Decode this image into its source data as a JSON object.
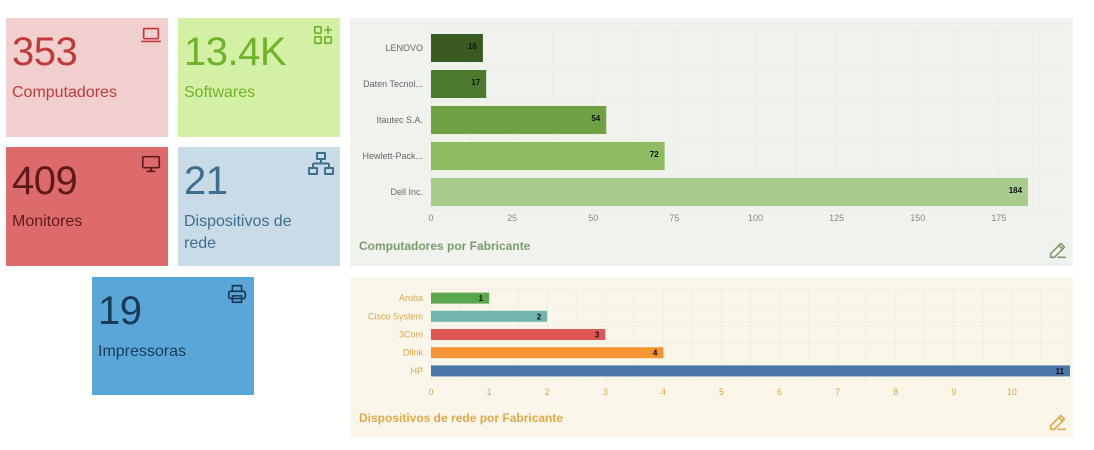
{
  "cards": {
    "computers": {
      "value": "353",
      "label": "Computadores",
      "icon": "laptop-icon"
    },
    "softwares": {
      "value": "13.4K",
      "label": "Softwares",
      "icon": "apps-add-icon"
    },
    "monitors": {
      "value": "409",
      "label": "Monitores",
      "icon": "monitor-icon"
    },
    "network": {
      "value": "21",
      "label": "Dispositivos de rede",
      "icon": "network-icon"
    },
    "printers": {
      "value": "19",
      "label": "Impressoras",
      "icon": "printer-icon"
    }
  },
  "chart_data": [
    {
      "type": "bar",
      "orientation": "horizontal",
      "title": "Computadores por Fabricante",
      "categories": [
        "LENOVO",
        "Daten Tecnol...",
        "Itautec S.A.",
        "Hewlett-Pack...",
        "Dell Inc."
      ],
      "values": [
        16,
        17,
        54,
        72,
        184
      ],
      "colors": [
        "#3a5a22",
        "#4c7a2c",
        "#70a144",
        "#8fbb62",
        "#a9cb8e"
      ],
      "xticks": [
        "0",
        "25",
        "50",
        "75",
        "100",
        "125",
        "150",
        "175"
      ],
      "xlim": [
        0,
        196
      ],
      "grid": true,
      "legend": "none"
    },
    {
      "type": "bar",
      "orientation": "horizontal",
      "title": "Dispositivos de rede por Fabricante",
      "categories": [
        "Aruba",
        "Cisco System",
        "3Com",
        "Dlink",
        "HP"
      ],
      "values": [
        1,
        2,
        3,
        4,
        11
      ],
      "colors": [
        "#5aa64f",
        "#72b5ac",
        "#e05656",
        "#f49432",
        "#4a76a8"
      ],
      "xticks": [
        "0",
        "1",
        "2",
        "3",
        "4",
        "5",
        "6",
        "7",
        "8",
        "9",
        "10"
      ],
      "xlim": [
        0,
        11
      ],
      "grid": true,
      "legend": "none"
    }
  ]
}
